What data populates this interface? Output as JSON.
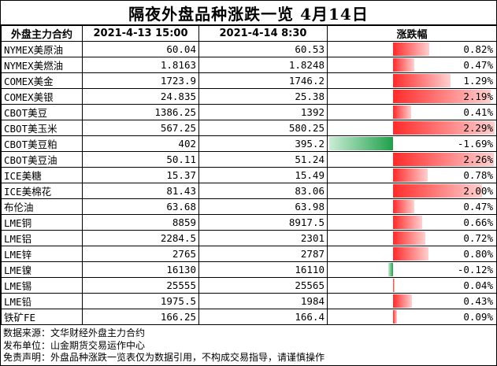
{
  "title": "隔夜外盘品种涨跌一览 4月14日",
  "headers": {
    "name": "外盘主力合约",
    "prev": "2021-4-13 15:00",
    "curr": "2021-4-14 8:30",
    "change": "涨跌幅"
  },
  "rows": [
    {
      "name": "NYMEX美原油",
      "prev": "60.04",
      "curr": "60.53",
      "change": "0.82%",
      "value": 0.82
    },
    {
      "name": "NYMEX美燃油",
      "prev": "1.8163",
      "curr": "1.8248",
      "change": "0.47%",
      "value": 0.47
    },
    {
      "name": "COMEX美金",
      "prev": "1723.9",
      "curr": "1746.2",
      "change": "1.29%",
      "value": 1.29
    },
    {
      "name": "COMEX美银",
      "prev": "24.835",
      "curr": "25.38",
      "change": "2.19%",
      "value": 2.19
    },
    {
      "name": "CBOT美豆",
      "prev": "1386.25",
      "curr": "1392",
      "change": "0.41%",
      "value": 0.41
    },
    {
      "name": "CBOT美玉米",
      "prev": "567.25",
      "curr": "580.25",
      "change": "2.29%",
      "value": 2.29
    },
    {
      "name": "CBOT美豆粕",
      "prev": "402",
      "curr": "395.2",
      "change": "-1.69%",
      "value": -1.69
    },
    {
      "name": "CBOT美豆油",
      "prev": "50.11",
      "curr": "51.24",
      "change": "2.26%",
      "value": 2.26
    },
    {
      "name": "ICE美糖",
      "prev": "15.37",
      "curr": "15.49",
      "change": "0.78%",
      "value": 0.78
    },
    {
      "name": "ICE美棉花",
      "prev": "81.43",
      "curr": "83.06",
      "change": "2.00%",
      "value": 2.0
    },
    {
      "name": "布伦油",
      "prev": "63.68",
      "curr": "63.98",
      "change": "0.47%",
      "value": 0.47
    },
    {
      "name": "LME铜",
      "prev": "8859",
      "curr": "8917.5",
      "change": "0.66%",
      "value": 0.66
    },
    {
      "name": "LME铝",
      "prev": "2284.5",
      "curr": "2301",
      "change": "0.72%",
      "value": 0.72
    },
    {
      "name": "LME锌",
      "prev": "2765",
      "curr": "2787",
      "change": "0.80%",
      "value": 0.8
    },
    {
      "name": "LME镍",
      "prev": "16130",
      "curr": "16110",
      "change": "-0.12%",
      "value": -0.12
    },
    {
      "name": "LME锡",
      "prev": "25555",
      "curr": "25565",
      "change": "0.04%",
      "value": 0.04
    },
    {
      "name": "LME铅",
      "prev": "1975.5",
      "curr": "1984",
      "change": "0.43%",
      "value": 0.43
    },
    {
      "name": "铁矿FE",
      "prev": "166.25",
      "curr": "166.4",
      "change": "0.09%",
      "value": 0.09
    }
  ],
  "notes": {
    "source": "数据来源：文华财经外盘主力合约",
    "publisher": "发布单位：山金期货交易运作中心",
    "disclaimer": "免责声明：外盘品种涨跌一览表仅为数据引用，不构成交易指导，请谨慎操作"
  },
  "colors": {
    "positive": "#ff2a2a",
    "negative": "#1fa04a"
  }
}
